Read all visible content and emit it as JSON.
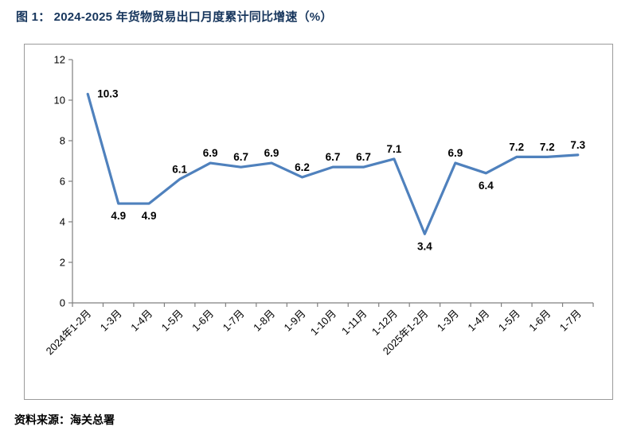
{
  "figure": {
    "title": "图 1：  2024-2025 年货物贸易出口月度累计同比增速（%）",
    "source": "资料来源：海关总署"
  },
  "chart_data": {
    "type": "line",
    "title": "2024-2025 年货物贸易出口月度累计同比增速（%）",
    "categories": [
      "2024年1-2月",
      "1-3月",
      "1-4月",
      "1-5月",
      "1-6月",
      "1-7月",
      "1-8月",
      "1-9月",
      "1-10月",
      "1-11月",
      "1-12月",
      "2025年1-2月",
      "1-3月",
      "1-4月",
      "1-5月",
      "1-6月",
      "1-7月"
    ],
    "values": [
      10.3,
      4.9,
      4.9,
      6.1,
      6.9,
      6.7,
      6.9,
      6.2,
      6.7,
      6.7,
      7.1,
      3.4,
      6.9,
      6.4,
      7.2,
      7.2,
      7.3
    ],
    "label_positions": [
      "right",
      "below",
      "below",
      "above",
      "above",
      "above",
      "above",
      "above",
      "above",
      "above",
      "above",
      "below",
      "above",
      "below",
      "above",
      "above",
      "above"
    ],
    "xlabel": "",
    "ylabel": "",
    "ylim": [
      0,
      12
    ],
    "yticks": [
      0,
      2,
      4,
      6,
      8,
      10,
      12
    ],
    "grid": false,
    "legend_position": "none",
    "line_color": "#4f81bd",
    "axis_color": "#7f7f7f",
    "label_color": "#000000"
  }
}
